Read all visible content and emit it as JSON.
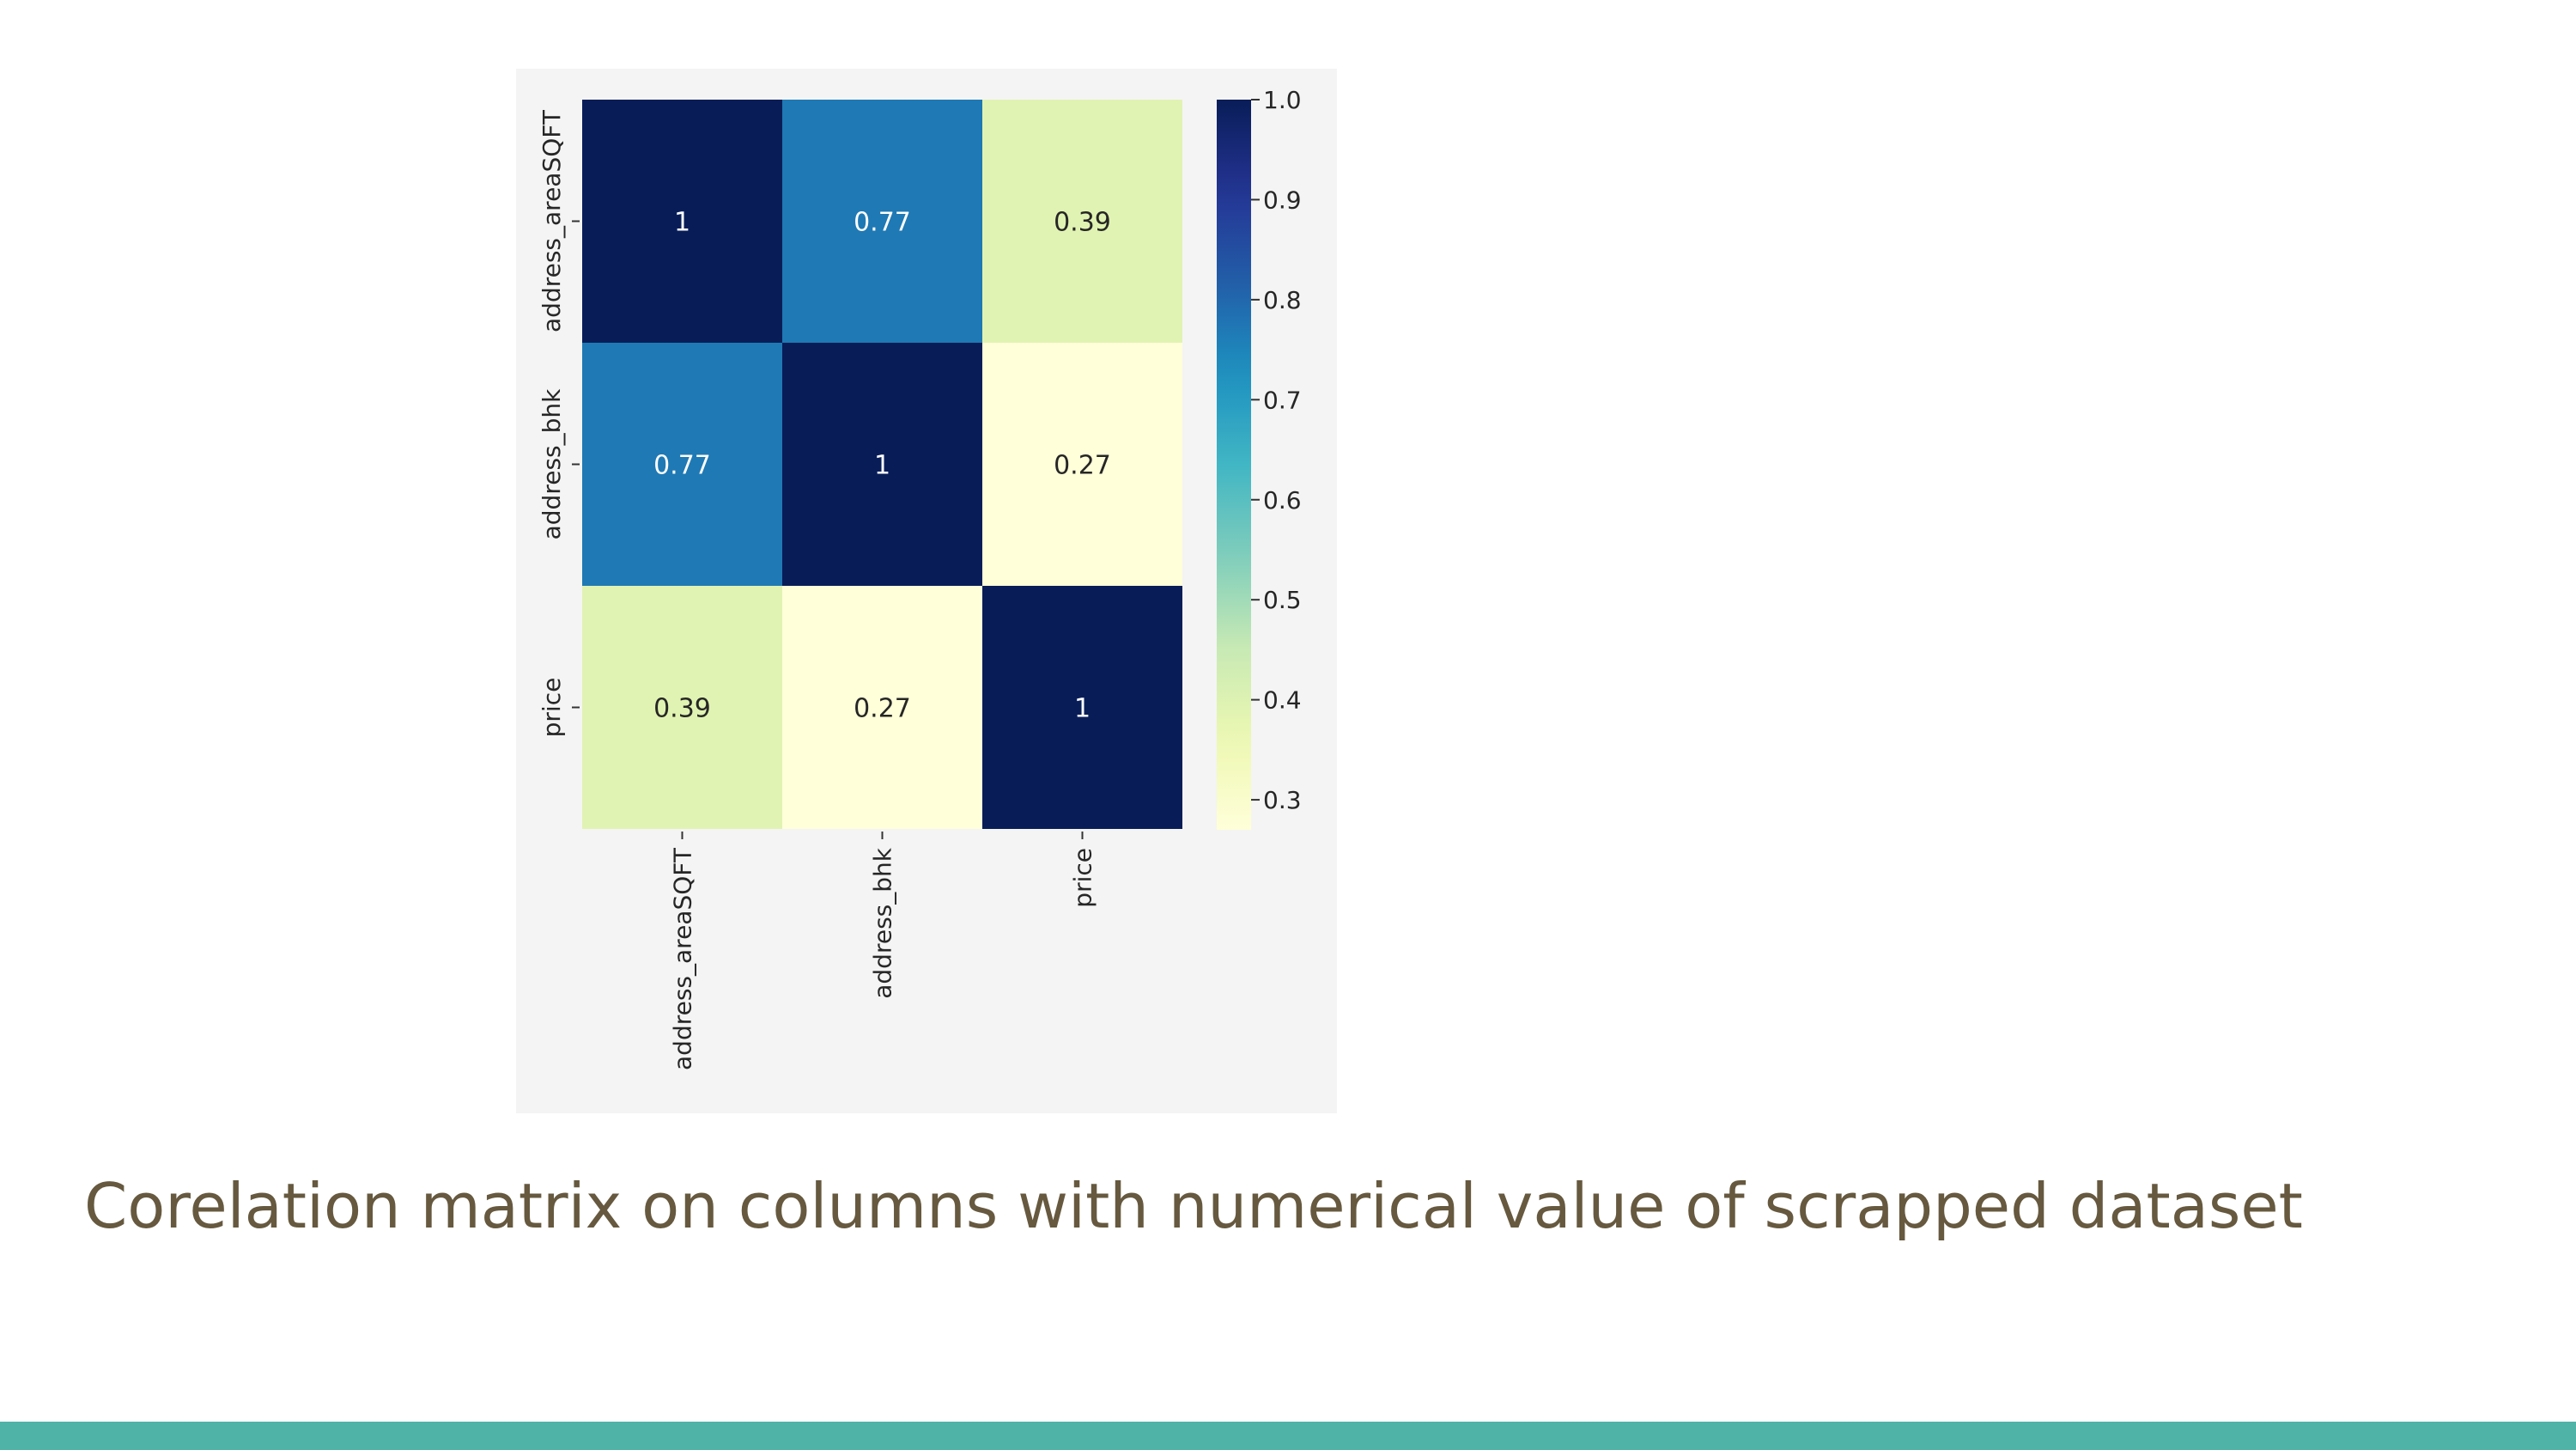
{
  "slide": {
    "caption": "Corelation matrix on columns with numerical value of scrapped dataset",
    "accent_color": "#4fb3a8",
    "caption_color": "#66593f"
  },
  "chart_data": {
    "type": "heatmap",
    "title": "",
    "x_labels": [
      "address_areaSQFT",
      "address_bhk",
      "price"
    ],
    "y_labels": [
      "address_areaSQFT",
      "address_bhk",
      "price"
    ],
    "values": [
      [
        1,
        0.77,
        0.39
      ],
      [
        0.77,
        1,
        0.27
      ],
      [
        0.39,
        0.27,
        1
      ]
    ],
    "cell_labels": [
      [
        "1",
        "0.77",
        "0.39"
      ],
      [
        "0.77",
        "1",
        "0.27"
      ],
      [
        "0.39",
        "0.27",
        "1"
      ]
    ],
    "colormap": "YlGnBu",
    "colorbar": {
      "min": 0.27,
      "max": 1.0,
      "ticks": [
        1.0,
        0.9,
        0.8,
        0.7,
        0.6,
        0.5,
        0.4,
        0.3
      ],
      "tick_labels": [
        "1.0",
        "0.9",
        "0.8",
        "0.7",
        "0.6",
        "0.5",
        "0.4",
        "0.3"
      ]
    }
  }
}
